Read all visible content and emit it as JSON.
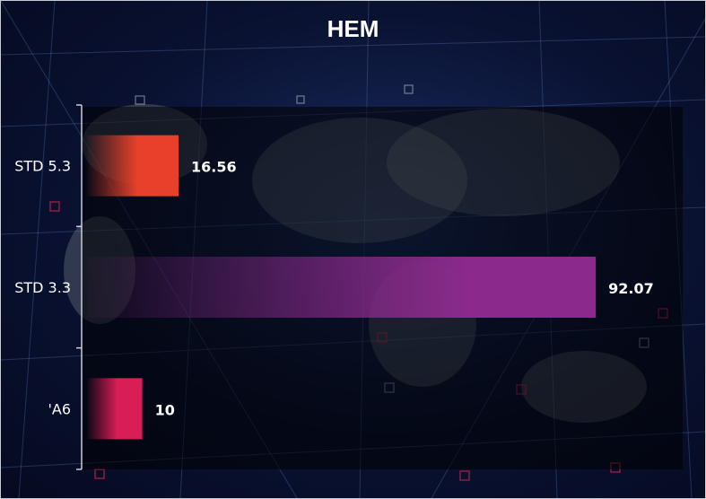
{
  "chart_data": {
    "type": "bar",
    "orientation": "horizontal",
    "title": "HEM",
    "categories": [
      "STD 5.3",
      "STD 3.3",
      "'A6"
    ],
    "values": [
      16.56,
      92.07,
      10
    ],
    "data_labels": [
      "16.56",
      "92.07",
      "10"
    ],
    "colors": [
      "#e8402a",
      "#8b2a8c",
      "#d81e55"
    ],
    "xlim": [
      0,
      100
    ],
    "grid": false
  }
}
